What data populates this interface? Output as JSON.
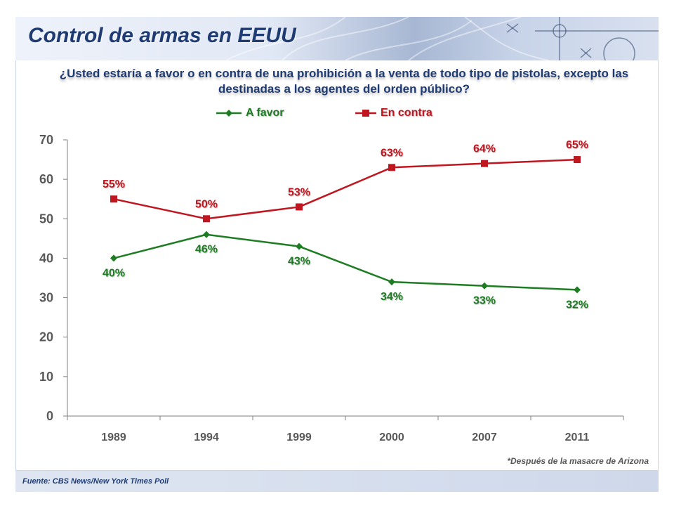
{
  "slide": {
    "title": "Control de armas en EEUU",
    "question": "¿Usted estaría a favor o en contra de una prohibición a la venta de todo tipo de pistolas, excepto las destinadas a los agentes del orden público?",
    "note": "*Después de la masacre de Arizona",
    "source": "Fuente: CBS News/New York Times Poll"
  },
  "colors": {
    "favor": "#1e7d22",
    "contra": "#c0161f",
    "axis": "#7f7f7f",
    "tick_text": "#595959",
    "title": "#1f3b73"
  },
  "chart_data": {
    "type": "line",
    "title": "¿Usted estaría a favor o en contra de una prohibición a la venta de todo tipo de pistolas, excepto las destinadas a los agentes del orden público?",
    "categories": [
      "1989",
      "1994",
      "1999",
      "2000",
      "2007",
      "2011"
    ],
    "ylim": [
      0,
      70
    ],
    "yticks": [
      0,
      10,
      20,
      30,
      40,
      50,
      60,
      70
    ],
    "grid": false,
    "legend_position": "top",
    "series": [
      {
        "name": "A favor",
        "marker": "diamond",
        "values": [
          40,
          46,
          43,
          34,
          33,
          32
        ],
        "labels": [
          "40%",
          "46%",
          "43%",
          "34%",
          "33%",
          "32%"
        ]
      },
      {
        "name": "En contra",
        "marker": "square",
        "values": [
          55,
          50,
          53,
          63,
          64,
          65
        ],
        "labels": [
          "55%",
          "50%",
          "53%",
          "63%",
          "64%",
          "65%"
        ]
      }
    ]
  }
}
